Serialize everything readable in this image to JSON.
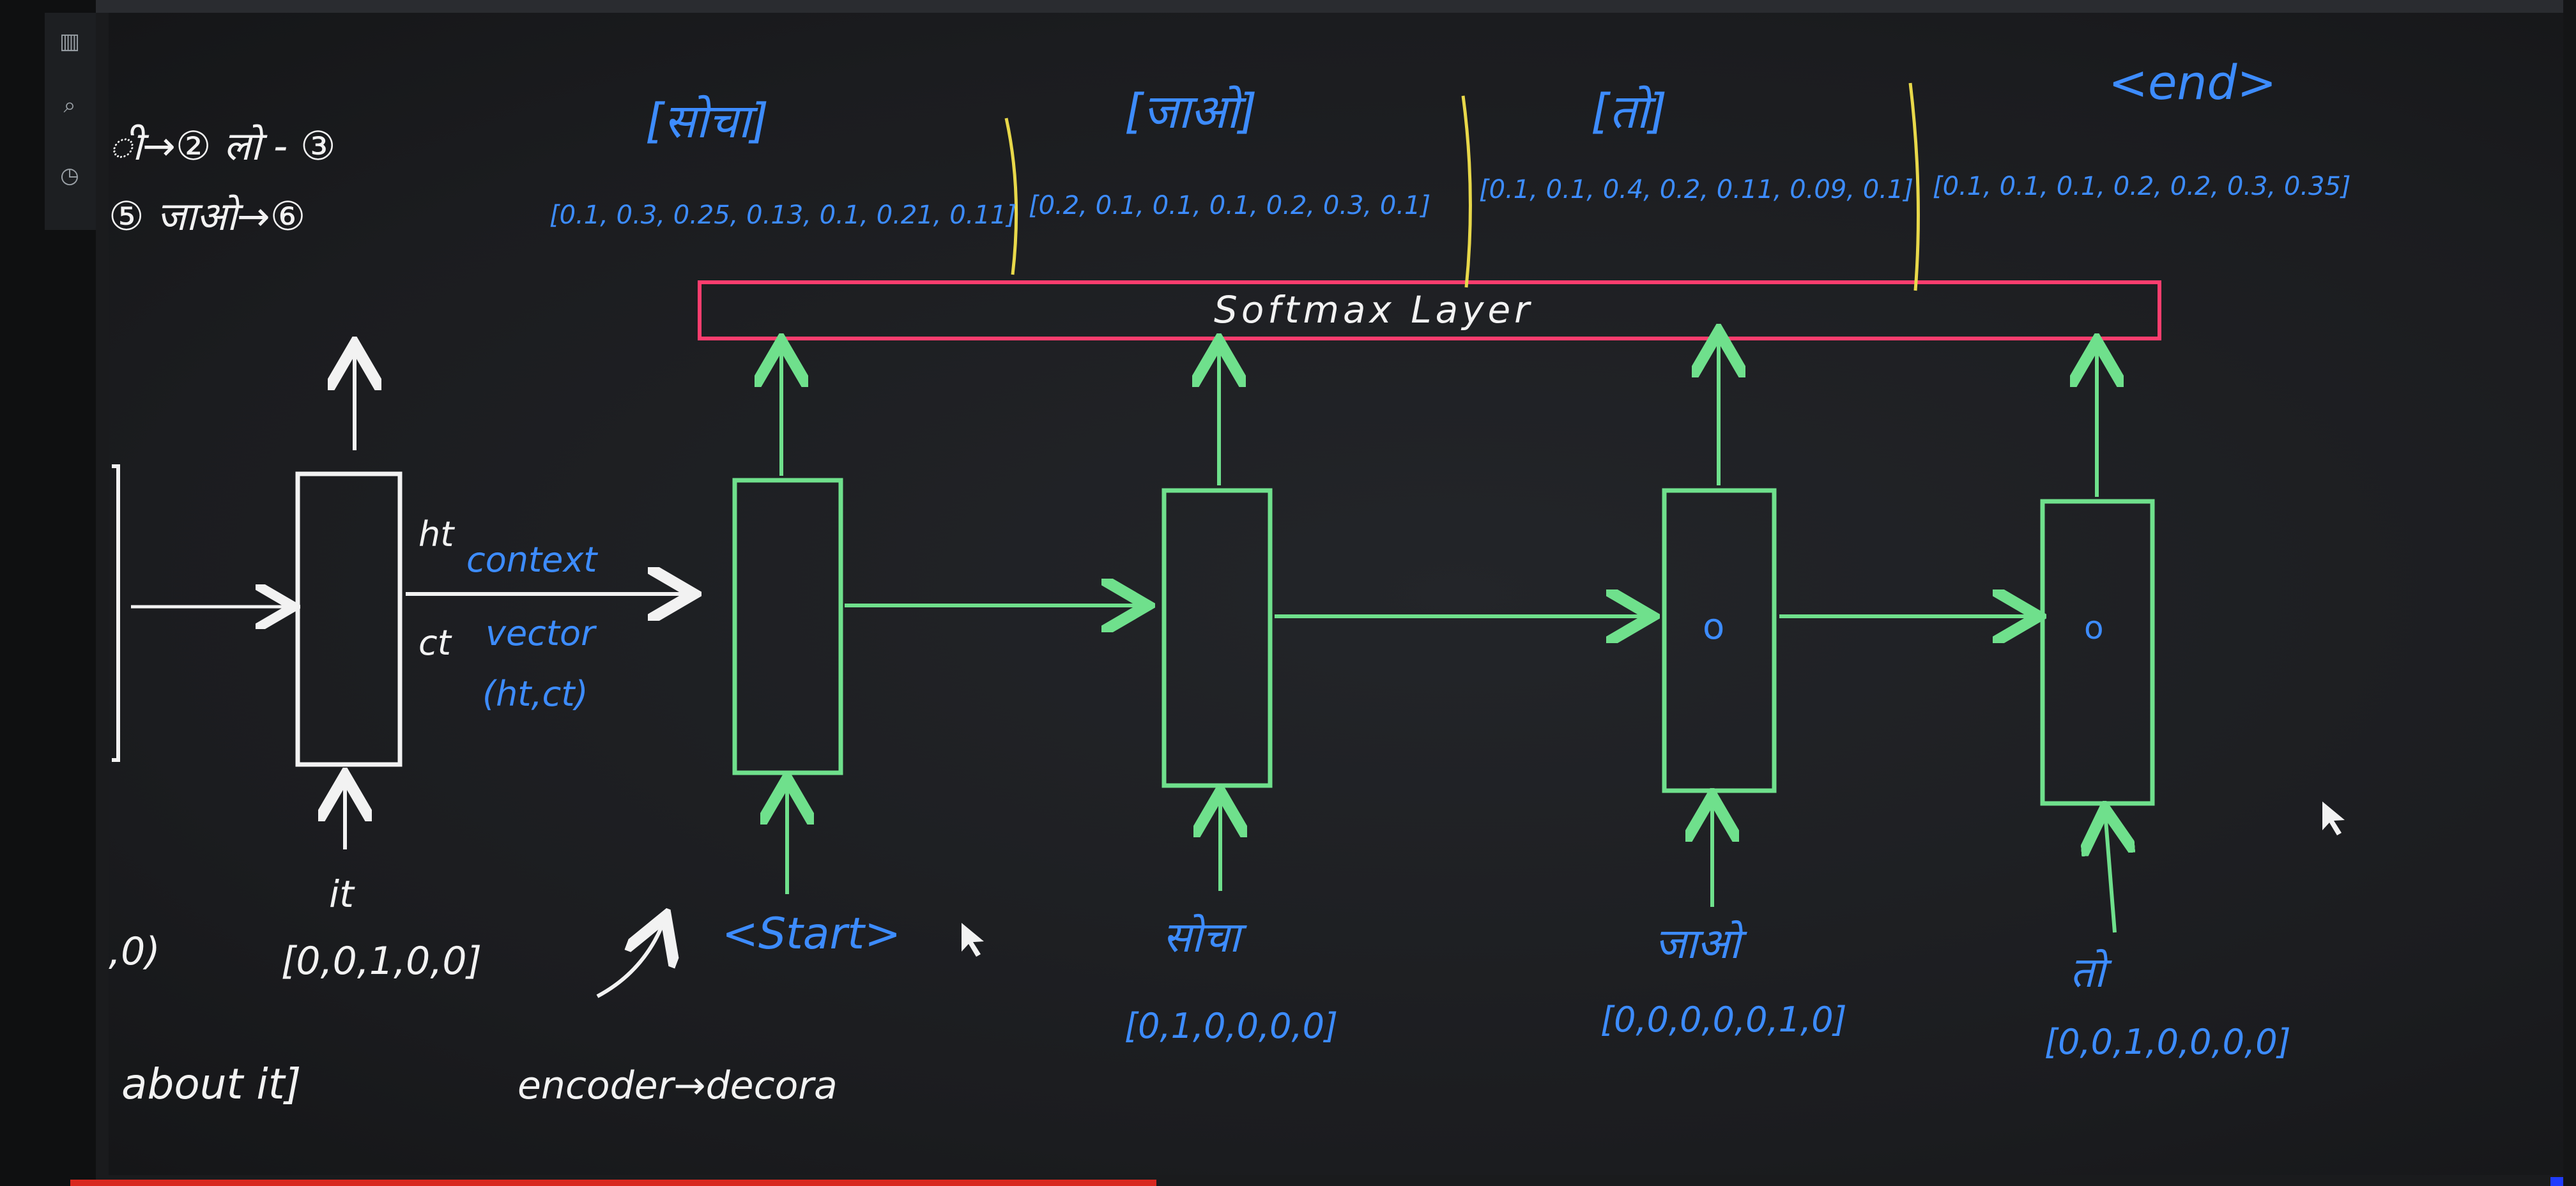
{
  "toolbar": {
    "icons": [
      "library-icon",
      "search-icon",
      "history-icon"
    ]
  },
  "colors": {
    "blue": "#3d8cff",
    "green": "#6fe08c",
    "white": "#f2f2f2",
    "red": "#ff3d6e",
    "yellow": "#e8d84a"
  },
  "notes": {
    "vocab_line1": "ी→② लो - ③",
    "vocab_line2": "⑤  जाओ→⑥",
    "about": "about it]",
    "enc_dec": "encoder→decora"
  },
  "encoder": {
    "h_label": "ht",
    "c_label": "ct",
    "input_label": "it",
    "input_vector": "[0,0,1,0,0]",
    "left_vector": ",0)"
  },
  "context": {
    "line1": "context",
    "line2": "vector",
    "line3": "(ht,ct)"
  },
  "softmax": {
    "label": "Softmax Layer"
  },
  "outputs": [
    {
      "word": "[सोचा]",
      "probs": "[0.1, 0.3, 0.25, 0.13, 0.1, 0.21, 0.11]"
    },
    {
      "word": "[जाओ]",
      "probs": "[0.2, 0.1, 0.1, 0.1, 0.2, 0.3, 0.1]"
    },
    {
      "word": "[तो]",
      "probs": "[0.1, 0.1, 0.4, 0.2, 0.11, 0.09, 0.1]"
    },
    {
      "word": "<end>",
      "probs": "[0.1, 0.1, 0.1, 0.2, 0.2, 0.3, 0.35]"
    }
  ],
  "decoder_inputs": [
    {
      "word": "<Start>",
      "vector": ""
    },
    {
      "word": "सोचा",
      "vector": "[0,1,0,0,0,0]"
    },
    {
      "word": "जाओ",
      "vector": "[0,0,0,0,0,1,0]"
    },
    {
      "word": "तो",
      "vector": "[0,0,1,0,0,0,0]"
    }
  ],
  "cell_marks": [
    "",
    "",
    "o",
    "o"
  ]
}
